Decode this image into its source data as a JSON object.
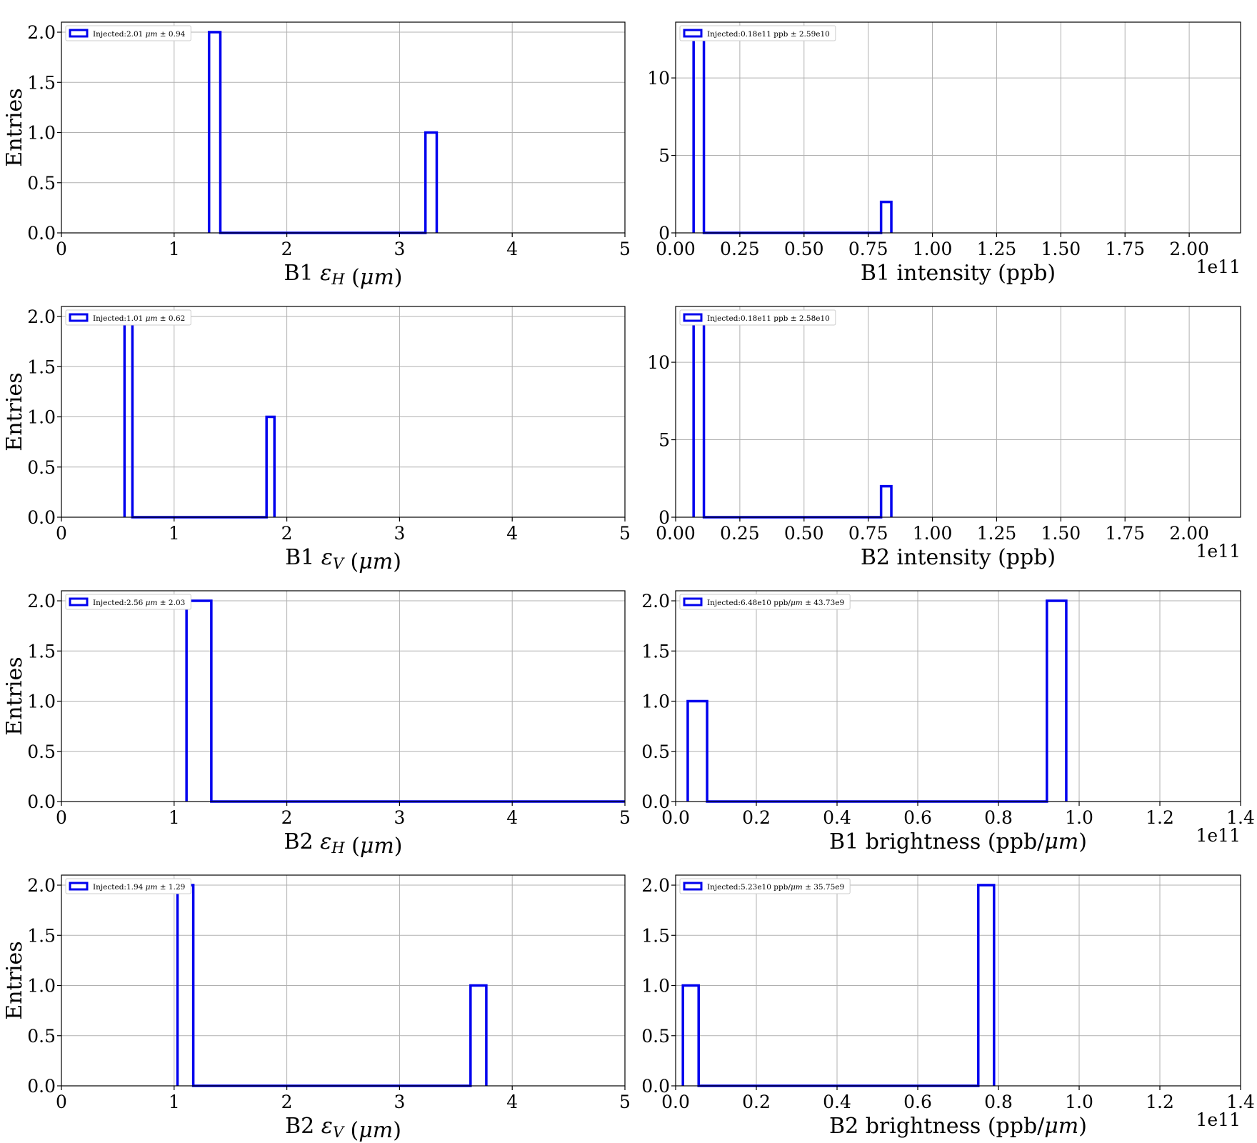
{
  "chart_data": [
    {
      "type": "bar",
      "xlabel": "B1 εH (μm)",
      "ylabel": "Entries",
      "xlim": [
        0,
        5
      ],
      "ylim": [
        0,
        2.1
      ],
      "xticks": [
        "0",
        "1",
        "2",
        "3",
        "4",
        "5"
      ],
      "yticks": [
        "0.0",
        "0.5",
        "1.0",
        "1.5",
        "2.0"
      ],
      "legend": "Injected:2.01 μm ± 0.94",
      "legend_position": "upper-left",
      "grid": true,
      "offset_text": "",
      "bin_edges": [
        1.31,
        1.41,
        3.23,
        3.33
      ],
      "bins": [
        {
          "x0": 1.31,
          "x1": 1.41,
          "count": 2
        },
        {
          "x0": 3.23,
          "x1": 3.33,
          "count": 1
        }
      ]
    },
    {
      "type": "bar",
      "xlabel": "B1 intensity (ppb)",
      "ylabel": "",
      "xlim": [
        0,
        2.2
      ],
      "ylim": [
        0,
        13.6
      ],
      "xticks": [
        "0.00",
        "0.25",
        "0.50",
        "0.75",
        "1.00",
        "1.25",
        "1.50",
        "1.75",
        "2.00"
      ],
      "xtick_values": [
        0,
        0.25,
        0.5,
        0.75,
        1.0,
        1.25,
        1.5,
        1.75,
        2.0
      ],
      "yticks": [
        "0",
        "5",
        "10"
      ],
      "ytick_values": [
        0,
        5,
        10
      ],
      "legend": "Injected:0.18e11 ppb ± 2.59e10",
      "legend_position": "upper-left",
      "grid": true,
      "offset_text": "1e11",
      "bins": [
        {
          "x0": 0.07,
          "x1": 0.11,
          "count": 13
        },
        {
          "x0": 0.8,
          "x1": 0.84,
          "count": 2
        }
      ]
    },
    {
      "type": "bar",
      "xlabel": "B1 εV (μm)",
      "ylabel": "Entries",
      "xlim": [
        0,
        5
      ],
      "ylim": [
        0,
        2.1
      ],
      "xticks": [
        "0",
        "1",
        "2",
        "3",
        "4",
        "5"
      ],
      "yticks": [
        "0.0",
        "0.5",
        "1.0",
        "1.5",
        "2.0"
      ],
      "legend": "Injected:1.01 μm ± 0.62",
      "legend_position": "upper-left",
      "grid": true,
      "offset_text": "",
      "bins": [
        {
          "x0": 0.56,
          "x1": 0.63,
          "count": 2
        },
        {
          "x0": 1.82,
          "x1": 1.89,
          "count": 1
        }
      ]
    },
    {
      "type": "bar",
      "xlabel": "B2 intensity (ppb)",
      "ylabel": "",
      "xlim": [
        0,
        2.2
      ],
      "ylim": [
        0,
        13.6
      ],
      "xticks": [
        "0.00",
        "0.25",
        "0.50",
        "0.75",
        "1.00",
        "1.25",
        "1.50",
        "1.75",
        "2.00"
      ],
      "xtick_values": [
        0,
        0.25,
        0.5,
        0.75,
        1.0,
        1.25,
        1.5,
        1.75,
        2.0
      ],
      "yticks": [
        "0",
        "5",
        "10"
      ],
      "ytick_values": [
        0,
        5,
        10
      ],
      "legend": "Injected:0.18e11 ppb ± 2.58e10",
      "legend_position": "upper-left",
      "grid": true,
      "offset_text": "1e11",
      "bins": [
        {
          "x0": 0.07,
          "x1": 0.11,
          "count": 13
        },
        {
          "x0": 0.8,
          "x1": 0.84,
          "count": 2
        }
      ]
    },
    {
      "type": "bar",
      "xlabel": "B2 εH (μm)",
      "ylabel": "Entries",
      "xlim": [
        0,
        5
      ],
      "ylim": [
        0,
        2.1
      ],
      "xticks": [
        "0",
        "1",
        "2",
        "3",
        "4",
        "5"
      ],
      "yticks": [
        "0.0",
        "0.5",
        "1.0",
        "1.5",
        "2.0"
      ],
      "legend": "Injected:2.56 μm ± 2.03",
      "legend_position": "upper-left",
      "grid": true,
      "offset_text": "",
      "bins": [
        {
          "x0": 1.11,
          "x1": 1.33,
          "count": 2
        },
        {
          "x0": 1.33,
          "x1": 5.0,
          "count": 0
        }
      ]
    },
    {
      "type": "bar",
      "xlabel": "B1 brightness (ppb/μm)",
      "ylabel": "",
      "xlim": [
        0,
        1.4
      ],
      "ylim": [
        0,
        2.1
      ],
      "xticks": [
        "0.0",
        "0.2",
        "0.4",
        "0.6",
        "0.8",
        "1.0",
        "1.2",
        "1.4"
      ],
      "xtick_values": [
        0,
        0.2,
        0.4,
        0.6,
        0.8,
        1.0,
        1.2,
        1.4
      ],
      "yticks": [
        "0.0",
        "0.5",
        "1.0",
        "1.5",
        "2.0"
      ],
      "legend": "Injected:6.48e10 ppb/μm ± 43.73e9",
      "legend_position": "upper-left",
      "grid": true,
      "offset_text": "1e11",
      "bins": [
        {
          "x0": 0.03,
          "x1": 0.078,
          "count": 1
        },
        {
          "x0": 0.92,
          "x1": 0.968,
          "count": 2
        }
      ]
    },
    {
      "type": "bar",
      "xlabel": "B2 εV (μm)",
      "ylabel": "Entries",
      "xlim": [
        0,
        5
      ],
      "ylim": [
        0,
        2.1
      ],
      "xticks": [
        "0",
        "1",
        "2",
        "3",
        "4",
        "5"
      ],
      "yticks": [
        "0.0",
        "0.5",
        "1.0",
        "1.5",
        "2.0"
      ],
      "legend": "Injected:1.94 μm ± 1.29",
      "legend_position": "upper-left",
      "grid": true,
      "offset_text": "",
      "bins": [
        {
          "x0": 1.03,
          "x1": 1.17,
          "count": 2
        },
        {
          "x0": 3.63,
          "x1": 3.77,
          "count": 1
        }
      ]
    },
    {
      "type": "bar",
      "xlabel": "B2 brightness (ppb/μm)",
      "ylabel": "",
      "xlim": [
        0,
        1.4
      ],
      "ylim": [
        0,
        2.1
      ],
      "xticks": [
        "0.0",
        "0.2",
        "0.4",
        "0.6",
        "0.8",
        "1.0",
        "1.2",
        "1.4"
      ],
      "xtick_values": [
        0,
        0.2,
        0.4,
        0.6,
        0.8,
        1.0,
        1.2,
        1.4
      ],
      "yticks": [
        "0.0",
        "0.5",
        "1.0",
        "1.5",
        "2.0"
      ],
      "legend": "Injected:5.23e10 ppb/μm ± 35.75e9",
      "legend_position": "upper-left",
      "grid": true,
      "offset_text": "1e11",
      "bins": [
        {
          "x0": 0.018,
          "x1": 0.057,
          "count": 1
        },
        {
          "x0": 0.75,
          "x1": 0.789,
          "count": 2
        }
      ]
    }
  ],
  "colors": {
    "histogram": "#0000ee",
    "grid": "#b0b0b0"
  }
}
